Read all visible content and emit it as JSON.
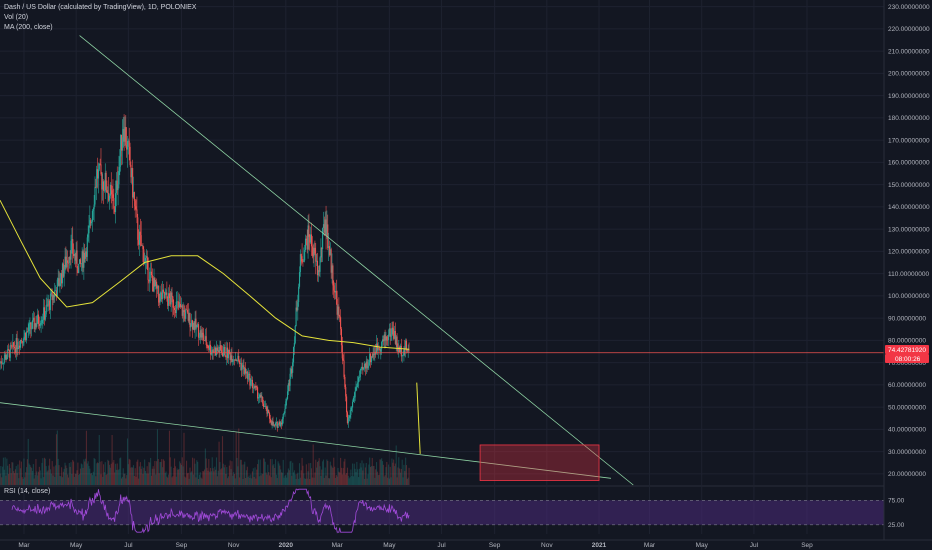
{
  "header": {
    "title": "Dash / US Dollar (calculated by TradingView), 1D, POLONIEX",
    "vol_label": "Vol (20)",
    "ma_label": "MA (200, close)",
    "rsi_label": "RSI (14, close)"
  },
  "price_badge": {
    "last_price": "74.42781920",
    "countdown": "08:00:26",
    "color": "#f23645"
  },
  "colors": {
    "background": "#131722",
    "up": "#26a69a",
    "down": "#ef5350",
    "ma": "#e5e33a",
    "trendline": "#8fd4a4",
    "rsi_line": "#a04ad8",
    "rsi_band": "#4a2a7a",
    "target_box": "#f23645"
  },
  "chart_data": {
    "type": "candlestick",
    "symbol": "Dash / US Dollar",
    "interval": "1D",
    "exchange": "POLONIEX",
    "y_axis": {
      "ticks": [
        "20.00000000",
        "30.00000000",
        "40.00000000",
        "50.00000000",
        "60.00000000",
        "70.00000000",
        "80.00000000",
        "90.00000000",
        "100.00000000",
        "110.00000000",
        "120.00000000",
        "130.00000000",
        "140.00000000",
        "150.00000000",
        "160.00000000",
        "170.00000000",
        "180.00000000",
        "190.00000000",
        "200.00000000",
        "210.00000000",
        "220.00000000",
        "230.00000000"
      ],
      "range": [
        15,
        233
      ]
    },
    "x_axis": {
      "ticks": [
        "Mar",
        "May",
        "Jul",
        "Sep",
        "Nov",
        "2020",
        "Mar",
        "May",
        "Jul",
        "Sep",
        "Nov",
        "2021",
        "Mar",
        "May",
        "Jul",
        "Sep"
      ],
      "range": [
        "2019-02-01",
        "2021-11-30"
      ]
    },
    "price_path": [
      [
        "2019-02-01",
        70
      ],
      [
        "2019-02-20",
        78
      ],
      [
        "2019-03-10",
        86
      ],
      [
        "2019-03-25",
        92
      ],
      [
        "2019-04-10",
        105
      ],
      [
        "2019-04-25",
        122
      ],
      [
        "2019-05-05",
        112
      ],
      [
        "2019-05-15",
        125
      ],
      [
        "2019-05-25",
        155
      ],
      [
        "2019-06-05",
        150
      ],
      [
        "2019-06-15",
        140
      ],
      [
        "2019-06-25",
        178
      ],
      [
        "2019-07-02",
        162
      ],
      [
        "2019-07-12",
        128
      ],
      [
        "2019-07-25",
        110
      ],
      [
        "2019-08-05",
        100
      ],
      [
        "2019-08-20",
        98
      ],
      [
        "2019-09-05",
        92
      ],
      [
        "2019-09-20",
        85
      ],
      [
        "2019-10-05",
        76
      ],
      [
        "2019-10-20",
        75
      ],
      [
        "2019-11-05",
        72
      ],
      [
        "2019-11-20",
        62
      ],
      [
        "2019-12-05",
        52
      ],
      [
        "2019-12-18",
        41
      ],
      [
        "2019-12-28",
        44
      ],
      [
        "2020-01-08",
        68
      ],
      [
        "2020-01-18",
        115
      ],
      [
        "2020-01-28",
        128
      ],
      [
        "2020-02-08",
        110
      ],
      [
        "2020-02-16",
        135
      ],
      [
        "2020-02-25",
        108
      ],
      [
        "2020-03-05",
        85
      ],
      [
        "2020-03-13",
        42
      ],
      [
        "2020-03-25",
        62
      ],
      [
        "2020-04-05",
        70
      ],
      [
        "2020-04-15",
        76
      ],
      [
        "2020-04-25",
        80
      ],
      [
        "2020-05-05",
        85
      ],
      [
        "2020-05-12",
        75
      ],
      [
        "2020-05-20",
        77
      ],
      [
        "2020-05-24",
        74.43
      ]
    ],
    "ma200_path": [
      [
        "2019-02-01",
        143
      ],
      [
        "2019-02-25",
        125
      ],
      [
        "2019-03-20",
        108
      ],
      [
        "2019-04-20",
        95
      ],
      [
        "2019-05-20",
        97
      ],
      [
        "2019-06-20",
        106
      ],
      [
        "2019-07-20",
        115
      ],
      [
        "2019-08-20",
        118
      ],
      [
        "2019-09-20",
        118
      ],
      [
        "2019-10-20",
        110
      ],
      [
        "2019-11-20",
        100
      ],
      [
        "2019-12-20",
        90
      ],
      [
        "2020-01-20",
        82
      ],
      [
        "2020-02-20",
        80
      ],
      [
        "2020-03-20",
        79
      ],
      [
        "2020-04-20",
        77
      ],
      [
        "2020-05-24",
        76
      ]
    ],
    "annotations": {
      "upper_trendline": [
        [
          "2019-05-05",
          217
        ],
        [
          "2021-02-10",
          15
        ]
      ],
      "lower_trendline": [
        [
          "2019-02-01",
          52
        ],
        [
          "2021-01-15",
          18
        ]
      ],
      "projection_line": [
        [
          "2020-06-02",
          61
        ],
        [
          "2020-06-06",
          29
        ]
      ],
      "target_box": {
        "x": [
          "2020-08-15",
          "2021-01-01"
        ],
        "y": [
          17,
          33
        ]
      },
      "last_price_line": 74.43
    },
    "rsi": {
      "ticks": [
        "75.00",
        "25.00"
      ],
      "levels": [
        70,
        30
      ],
      "range": [
        15,
        90
      ]
    }
  }
}
